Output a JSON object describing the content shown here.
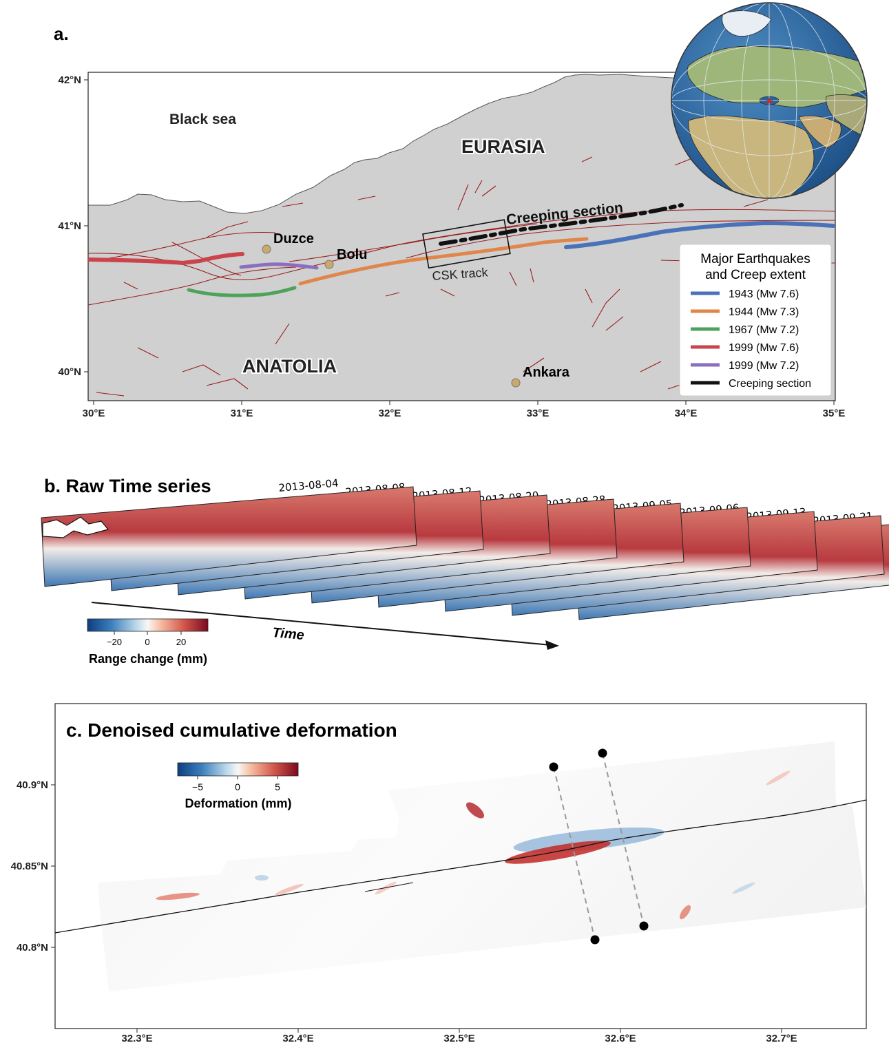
{
  "panel_a": {
    "label": "a.",
    "lat_ticks": [
      "42°N",
      "41°N",
      "40°N"
    ],
    "lon_ticks": [
      "30°E",
      "31°E",
      "32°E",
      "33°E",
      "34°E",
      "35°E"
    ],
    "sea_label": "Black sea",
    "plate_north": "EURASIA",
    "plate_south": "ANATOLIA",
    "creeping_label": "Creeping section",
    "box_label": "CSK track",
    "cities": [
      {
        "name": "Duzce",
        "lon": 31.17,
        "lat": 40.84
      },
      {
        "name": "Bolu",
        "lon": 31.6,
        "lat": 40.74
      },
      {
        "name": "Ankara",
        "lon": 32.87,
        "lat": 39.93
      }
    ],
    "legend": {
      "title_line1": "Major Earthquakes",
      "title_line2": "and Creep extent",
      "entries": [
        {
          "label": "1943 (Mw 7.6)",
          "color": "#4a72b8"
        },
        {
          "label": "1944 (Mw 7.3)",
          "color": "#e0864a"
        },
        {
          "label": "1967 (Mw 7.2)",
          "color": "#4ea35c"
        },
        {
          "label": "1999 (Mw 7.6)",
          "color": "#c9454b"
        },
        {
          "label": "1999 (Mw 7.2)",
          "color": "#8a6fbf"
        },
        {
          "label": "Creeping section",
          "color": "#111111"
        }
      ]
    }
  },
  "panel_b": {
    "label": "b. Raw Time series",
    "dates": [
      "2013-08-04",
      "2013-08-08",
      "2013-08-12",
      "2013-08-20",
      "2013-08-28",
      "2013-09-05",
      "2013-09-06",
      "2013-09-13",
      "2013-09-21"
    ],
    "time_label": "Time",
    "colorbar_ticks": [
      "−20",
      "0",
      "20"
    ],
    "colorbar_label": "Range change (mm)"
  },
  "panel_c": {
    "label": "c. Denoised cumulative deformation",
    "lat_ticks": [
      "40.9°N",
      "40.85°N",
      "40.8°N"
    ],
    "lon_ticks": [
      "32.3°E",
      "32.4°E",
      "32.5°E",
      "32.6°E",
      "32.7°E"
    ],
    "colorbar_ticks": [
      "−5",
      "0",
      "5"
    ],
    "colorbar_label": "Deformation (mm)"
  },
  "colors": {
    "land": "#d0d0d0",
    "fault": "#9b1b1b",
    "diverging_low": "#1f4e99",
    "diverging_high": "#9e1022"
  }
}
